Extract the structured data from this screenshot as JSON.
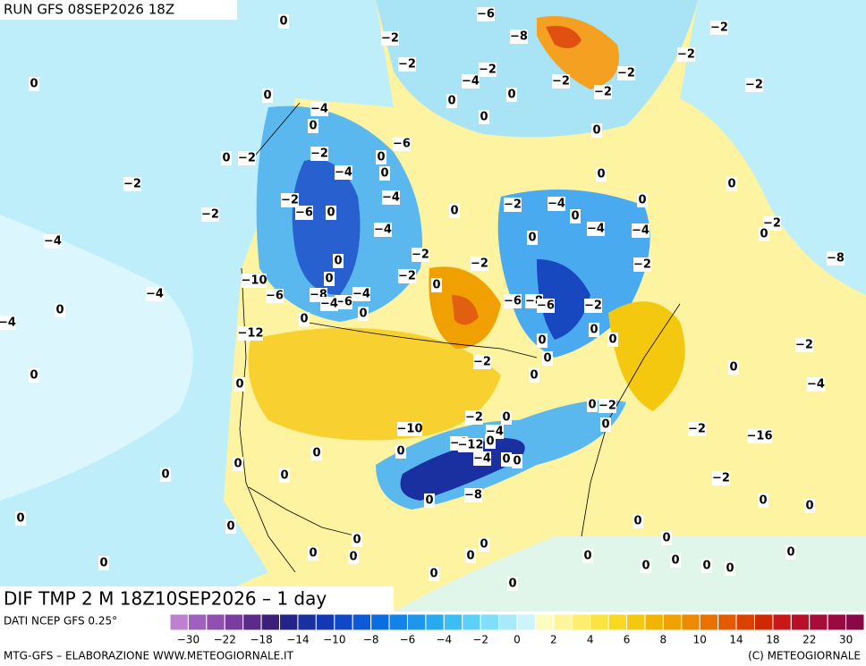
{
  "header": {
    "run": "RUN GFS 08SEP2026 18Z",
    "title": "DIF TMP 2 M 18Z10SEP2026 – 1 day"
  },
  "footer": {
    "source": "DATI NCEP GFS 0.25°",
    "credit": "MTG-GFS – ELABORAZIONE WWW.METEOGIORNALE.IT",
    "copyright": "(C) METEOGIORNALE"
  },
  "legend": {
    "colors": [
      "#c080d0",
      "#a060c0",
      "#9050b0",
      "#7a3c9e",
      "#5b2a8a",
      "#3c1f7a",
      "#23238c",
      "#1a2fa0",
      "#1438b4",
      "#1048c8",
      "#0c5ad8",
      "#0a6ee0",
      "#1482e6",
      "#1e96ec",
      "#28aaf0",
      "#3cbef4",
      "#5cd0f6",
      "#80def8",
      "#a8eafa",
      "#ccf4fc",
      "#fffcc0",
      "#fff59a",
      "#fdee70",
      "#fbe440",
      "#f8d820",
      "#f5c810",
      "#f2b400",
      "#f0a000",
      "#ee8a00",
      "#ea7000",
      "#e45a00",
      "#dc4000",
      "#d02800",
      "#c81818",
      "#b8102a",
      "#a80c38",
      "#980a40",
      "#880848"
    ],
    "ticks": [
      "-30",
      "-22",
      "-18",
      "-14",
      "-10",
      "-8",
      "-6",
      "-4",
      "-2",
      "0",
      "2",
      "4",
      "6",
      "8",
      "10",
      "14",
      "18",
      "22",
      "30"
    ]
  },
  "map_labels": [
    "0",
    "-6",
    "-8",
    "-2",
    "-2",
    "-2",
    "-2",
    "-2",
    "-2",
    "-4",
    "-2",
    "-2",
    "-2",
    "0",
    "0",
    "0",
    "0",
    "-4",
    "0",
    "0",
    "0",
    "-6",
    "-2",
    "0",
    "0",
    "-2",
    "-4",
    "0",
    "0",
    "0",
    "-2",
    "-2",
    "-4",
    "-6",
    "0",
    "0",
    "-2",
    "-4",
    "0",
    "0",
    "-2",
    "-4",
    "-4",
    "-4",
    "0",
    "-2",
    "0",
    "-4",
    "-2",
    "-8",
    "0",
    "-2",
    "-2",
    "-10",
    "0",
    "-2",
    "0",
    "-4",
    "-6",
    "-8",
    "-6",
    "-4",
    "-4",
    "-6",
    "-8",
    "-6",
    "-2",
    "0",
    "0",
    "0",
    "-4",
    "0",
    "-12",
    "0",
    "0",
    "-2",
    "-2",
    "0",
    "0",
    "0",
    "0",
    "0",
    "-4",
    "0",
    "-2",
    "0",
    "-2",
    "0",
    "-10",
    "-4",
    "-8",
    "-12",
    "0",
    "-2",
    "0",
    "0",
    "-16",
    "-4",
    "0",
    "0",
    "0",
    "0",
    "0",
    "-2",
    "-8",
    "0",
    "0",
    "0",
    "0",
    "0",
    "0",
    "0",
    "0",
    "0",
    "0",
    "0",
    "0",
    "0",
    "0",
    "0",
    "0",
    "0",
    "0",
    "0",
    "0",
    "0"
  ]
}
